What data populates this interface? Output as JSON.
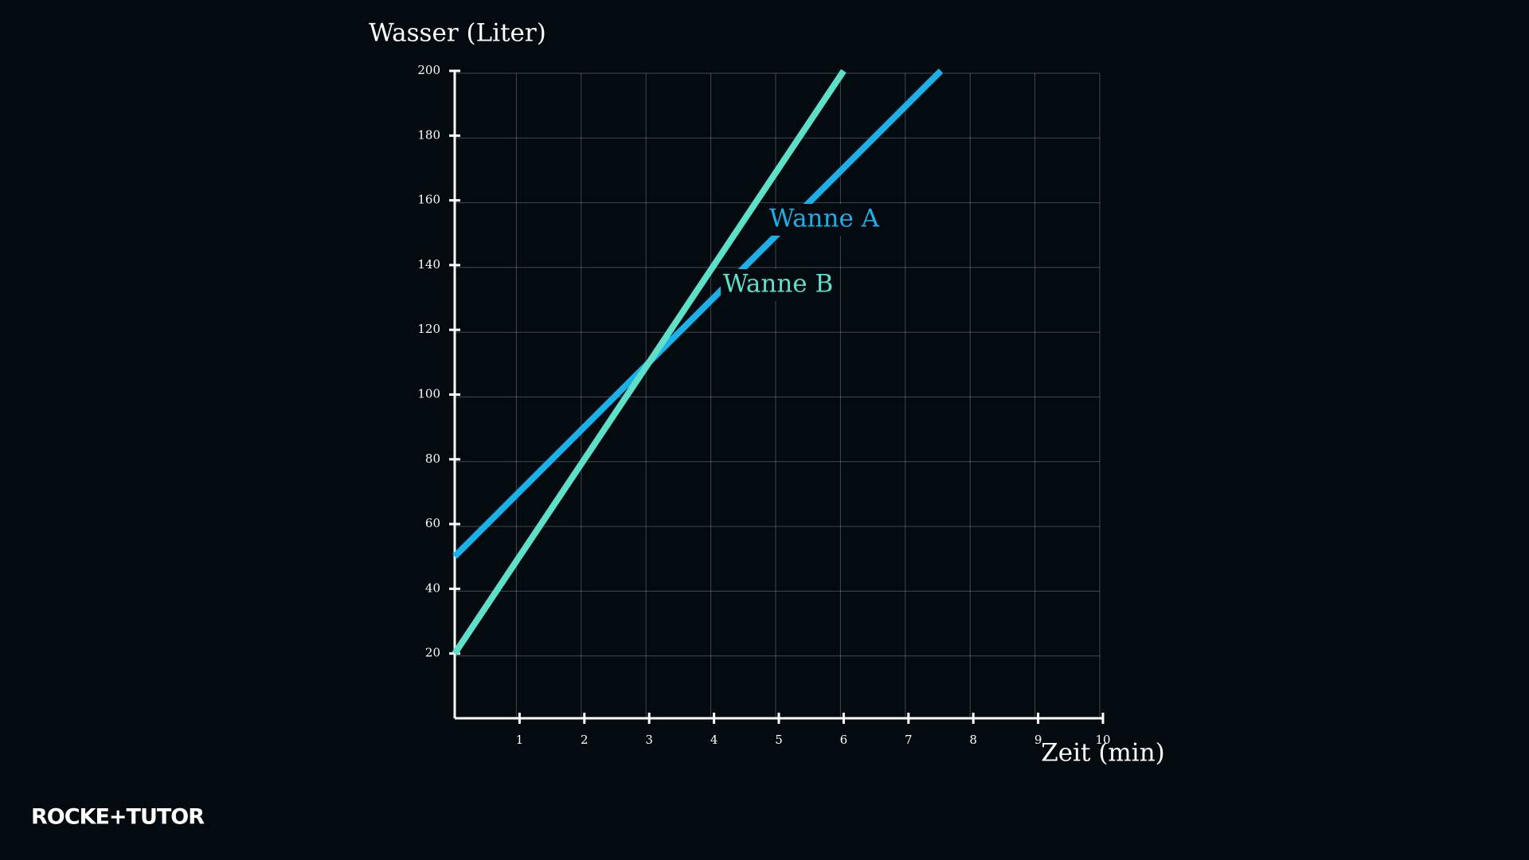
{
  "chart_data": {
    "type": "line",
    "y_label": "Wasser (Liter)",
    "x_label": "Zeit (min)",
    "x": [
      0,
      3,
      6,
      7.5
    ],
    "series": [
      {
        "name": "Wanne A",
        "color": "#1ab0e8",
        "values": [
          50,
          110,
          170,
          200
        ]
      },
      {
        "name": "Wanne B",
        "color": "#5ee0c8",
        "values": [
          20,
          110,
          200,
          null
        ]
      }
    ],
    "xlim": [
      0,
      10
    ],
    "ylim": [
      0,
      200
    ],
    "xticks": [
      1,
      2,
      3,
      4,
      5,
      6,
      7,
      8,
      9,
      10
    ],
    "yticks": [
      20,
      40,
      60,
      80,
      100,
      120,
      140,
      160,
      180,
      200
    ],
    "grid": true
  },
  "logo": "ROCKE+TUTOR"
}
